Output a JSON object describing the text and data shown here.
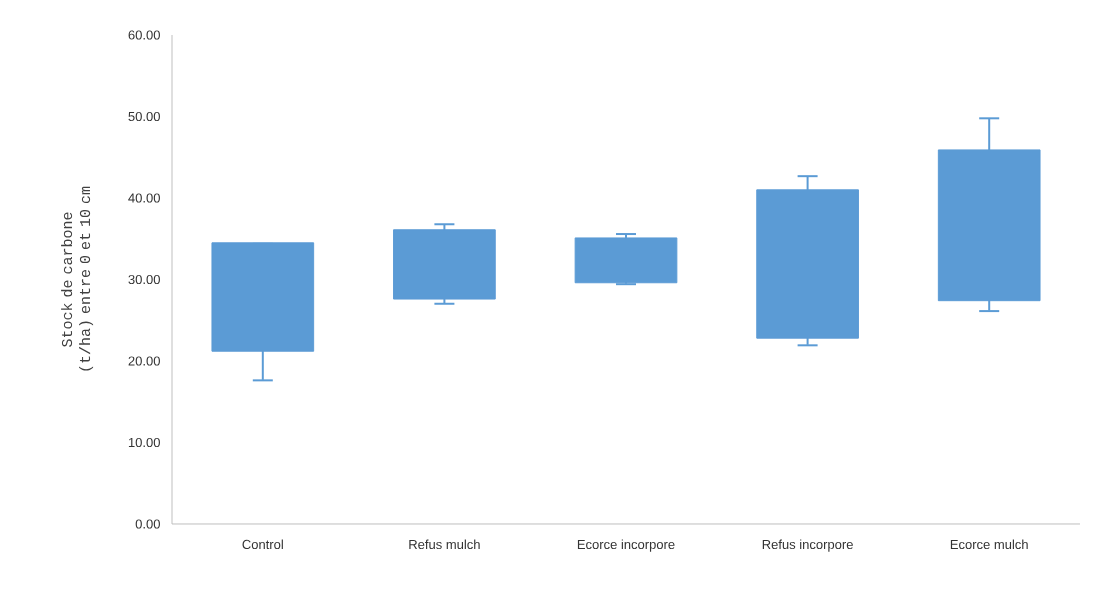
{
  "chart_data": {
    "type": "bar",
    "ylabel": "Stock de carbone (t/ha) entre 0 et 10 cm",
    "categories": [
      "Control",
      "Refus mulch",
      "Ecorce incorpore",
      "Refus incorpore",
      "Ecorce mulch"
    ],
    "base": [
      21.2,
      27.6,
      29.6,
      22.8,
      27.4
    ],
    "values": [
      13.3,
      8.5,
      5.5,
      18.2,
      18.5
    ],
    "errors": [
      [
        17.5,
        34.5
      ],
      [
        26.9,
        36.9
      ],
      [
        29.3,
        35.7
      ],
      [
        21.8,
        42.8
      ],
      [
        26.0,
        49.9
      ]
    ],
    "color": "#5b9bd5",
    "ylim": [
      0,
      60
    ],
    "yticks": [
      {
        "value": 0,
        "label": "0.00"
      },
      {
        "value": 10,
        "label": "10.00"
      },
      {
        "value": 20,
        "label": "20.00"
      },
      {
        "value": 30,
        "label": "30.00"
      },
      {
        "value": 40,
        "label": "40.00"
      },
      {
        "value": 50,
        "label": "50.00"
      },
      {
        "value": 60,
        "label": "60.00"
      }
    ],
    "grid": false
  }
}
